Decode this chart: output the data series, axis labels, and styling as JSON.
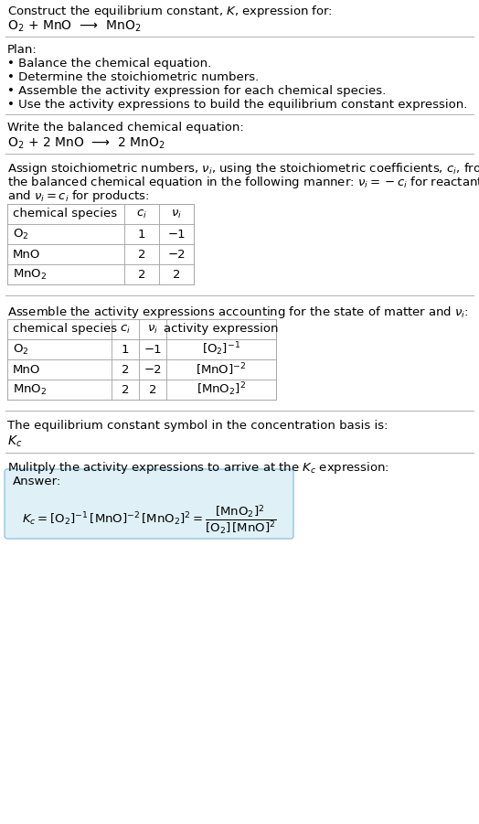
{
  "bg_color": "#ffffff",
  "answer_bg": "#dff0f7",
  "answer_border": "#8ec8e0",
  "text_color": "#000000",
  "font_size": 9.5,
  "small_font": 9.0,
  "sections": {
    "title": "Construct the equilibrium constant, $K$, expression for:",
    "reaction_unbalanced": "O$_2$ + MnO  ⟶  MnO$_2$",
    "plan_header": "Plan:",
    "plan_bullets": [
      "• Balance the chemical equation.",
      "• Determine the stoichiometric numbers.",
      "• Assemble the activity expression for each chemical species.",
      "• Use the activity expressions to build the equilibrium constant expression."
    ],
    "balanced_header": "Write the balanced chemical equation:",
    "reaction_balanced": "O$_2$ + 2 MnO  ⟶  2 MnO$_2$",
    "assign_text": [
      "Assign stoichiometric numbers, $\\nu_i$, using the stoichiometric coefficients, $c_i$, from",
      "the balanced chemical equation in the following manner: $\\nu_i = -c_i$ for reactants",
      "and $\\nu_i = c_i$ for products:"
    ],
    "table1_headers": [
      "chemical species",
      "$c_i$",
      "$\\nu_i$"
    ],
    "table1_rows": [
      [
        "O$_2$",
        "1",
        "−1"
      ],
      [
        "MnO",
        "2",
        "−2"
      ],
      [
        "MnO$_2$",
        "2",
        "2"
      ]
    ],
    "assemble_header": "Assemble the activity expressions accounting for the state of matter and $\\nu_i$:",
    "table2_headers": [
      "chemical species",
      "$c_i$",
      "$\\nu_i$",
      "activity expression"
    ],
    "table2_rows": [
      [
        "O$_2$",
        "1",
        "−1",
        "[O$_2$]$^{-1}$"
      ],
      [
        "MnO",
        "2",
        "−2",
        "[MnO]$^{-2}$"
      ],
      [
        "MnO$_2$",
        "2",
        "2",
        "[MnO$_2$]$^2$"
      ]
    ],
    "kc_header": "The equilibrium constant symbol in the concentration basis is:",
    "kc_symbol": "$K_c$",
    "multiply_header": "Mulitply the activity expressions to arrive at the $K_c$ expression:",
    "answer_label": "Answer:",
    "answer_eq": "$K_c = [\\mathrm{O_2}]^{-1}\\,[\\mathrm{MnO}]^{-2}\\,[\\mathrm{MnO_2}]^2 = \\dfrac{[\\mathrm{MnO_2}]^2}{[\\mathrm{O_2}]\\,[\\mathrm{MnO}]^2}$"
  }
}
